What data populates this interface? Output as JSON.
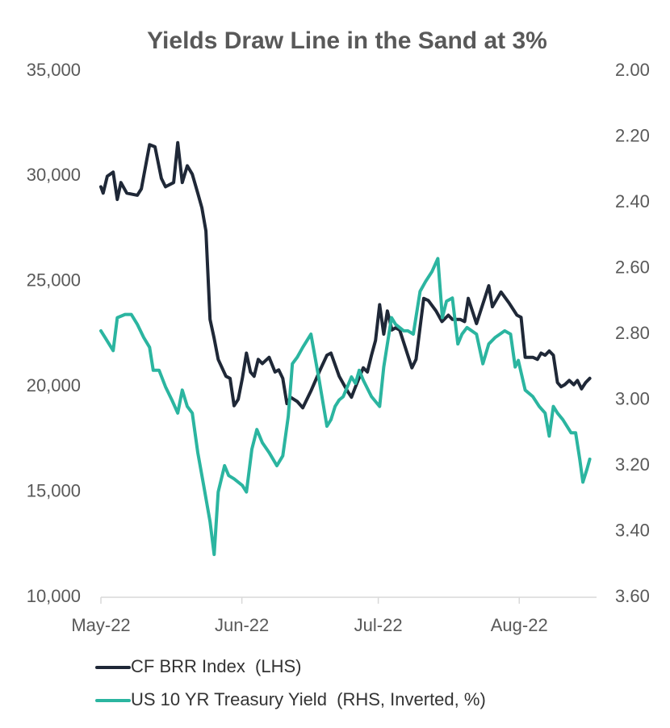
{
  "chart_data": {
    "type": "line",
    "title": "Yields Draw Line in the Sand at 3%",
    "xlim": [
      0,
      109
    ],
    "xticks": [
      {
        "value": 0,
        "label": "May-22"
      },
      {
        "value": 31,
        "label": "Jun-22"
      },
      {
        "value": 61,
        "label": "Jul-22"
      },
      {
        "value": 92,
        "label": "Aug-22"
      }
    ],
    "ylim": [
      10000,
      35000
    ],
    "yticks": [
      {
        "value": 10000,
        "label": "10,000"
      },
      {
        "value": 15000,
        "label": "15,000"
      },
      {
        "value": 20000,
        "label": "20,000"
      },
      {
        "value": 25000,
        "label": "25,000"
      },
      {
        "value": 30000,
        "label": "30,000"
      },
      {
        "value": 35000,
        "label": "35,000"
      }
    ],
    "y2lim": [
      2.0,
      3.6
    ],
    "y2_inverted": true,
    "y2ticks": [
      {
        "value": 2.0,
        "label": "2.00"
      },
      {
        "value": 2.2,
        "label": "2.20"
      },
      {
        "value": 2.4,
        "label": "2.40"
      },
      {
        "value": 2.6,
        "label": "2.60"
      },
      {
        "value": 2.8,
        "label": "2.80"
      },
      {
        "value": 3.0,
        "label": "3.00"
      },
      {
        "value": 3.2,
        "label": "3.20"
      },
      {
        "value": 3.4,
        "label": "3.40"
      },
      {
        "value": 3.6,
        "label": "3.60"
      }
    ],
    "legend": "bottom",
    "series": [
      {
        "name": "CF BRR Index  (LHS)",
        "color": "#1f2837",
        "axis": "y",
        "x": [
          0,
          0.5,
          1.4,
          2.7,
          3.6,
          4.4,
          5.7,
          8.0,
          8.9,
          10.7,
          11.9,
          13.3,
          14.2,
          16.0,
          16.9,
          17.9,
          19.0,
          20.1,
          21.3,
          22.2,
          23.1,
          24.0,
          24.9,
          25.8,
          27.5,
          28.4,
          29.3,
          30.2,
          31.1,
          32.0,
          32.9,
          33.7,
          34.6,
          35.5,
          37.0,
          38.3,
          39.1,
          40.0,
          40.9,
          41.7,
          43.2,
          44.4,
          46.2,
          48.0,
          49.7,
          50.6,
          52.4,
          54.2,
          55.1,
          56.0,
          57.7,
          58.6,
          59.5,
          60.4,
          61.3,
          62.2,
          63.0,
          64.0,
          64.8,
          65.7,
          67.5,
          68.4,
          69.3,
          71.0,
          72.0,
          73.7,
          75.0,
          76.4,
          77.3,
          79.0,
          80.0,
          80.8,
          82.6,
          84.4,
          85.3,
          86.1,
          88.0,
          89.7,
          91.5,
          92.4,
          93.3,
          95.0,
          96.0,
          96.8,
          97.7,
          98.6,
          99.5,
          100.4,
          101.2,
          102.0,
          103.0,
          104.0,
          104.8,
          105.7,
          106.6,
          107.5
        ],
        "values": [
          29500,
          29200,
          30000,
          30200,
          28900,
          29700,
          29200,
          29100,
          29400,
          31500,
          31400,
          29900,
          29500,
          29700,
          31600,
          29700,
          30500,
          30100,
          29200,
          28500,
          27400,
          23200,
          22300,
          21300,
          20500,
          20400,
          19100,
          19400,
          20400,
          21600,
          20700,
          20500,
          21300,
          21100,
          21400,
          20700,
          20800,
          20400,
          19200,
          19500,
          19300,
          19000,
          19800,
          20700,
          21500,
          21600,
          20500,
          19800,
          19500,
          20000,
          20900,
          20700,
          21500,
          22200,
          23900,
          22500,
          23600,
          22700,
          22800,
          22700,
          21500,
          20900,
          21300,
          24200,
          24100,
          23600,
          23100,
          23400,
          23200,
          23200,
          23100,
          24200,
          23000,
          24200,
          24800,
          23800,
          24500,
          24000,
          23400,
          23300,
          21400,
          21400,
          21300,
          21600,
          21500,
          21700,
          21500,
          20200,
          20000,
          20100,
          20300,
          20100,
          20300,
          19900,
          20200,
          20400
        ]
      },
      {
        "name": "US 10 YR Treasury Yield  (RHS, Inverted, %)",
        "color": "#2bb5a0",
        "axis": "y2",
        "x": [
          0,
          0.9,
          2.7,
          3.6,
          5.3,
          6.7,
          8.0,
          9.4,
          10.7,
          11.5,
          12.8,
          14.2,
          15.6,
          16.9,
          17.9,
          19.0,
          20.1,
          21.3,
          22.6,
          24.0,
          24.9,
          25.8,
          27.2,
          28.1,
          29.3,
          31.1,
          32.0,
          33.2,
          34.3,
          35.5,
          37.0,
          38.7,
          40.0,
          41.2,
          42.1,
          43.2,
          44.4,
          46.2,
          48.0,
          49.7,
          50.6,
          51.5,
          52.4,
          53.3,
          54.2,
          55.1,
          56.0,
          56.8,
          57.7,
          59.5,
          61.3,
          62.2,
          63.9,
          64.8,
          66.6,
          67.5,
          68.7,
          70.2,
          71.4,
          72.8,
          74.1,
          75.1,
          76.0,
          77.3,
          78.5,
          79.4,
          80.5,
          82.6,
          84.0,
          85.3,
          86.7,
          88.8,
          90.1,
          91.1,
          91.8,
          93.3,
          95.0,
          96.4,
          97.7,
          98.6,
          99.5,
          100.4,
          101.6,
          103.4,
          104.4,
          105.3,
          106.0,
          106.9,
          107.5
        ],
        "values": [
          2.79,
          2.81,
          2.85,
          2.75,
          2.74,
          2.74,
          2.77,
          2.81,
          2.84,
          2.91,
          2.91,
          2.96,
          3.0,
          3.04,
          2.97,
          3.02,
          3.04,
          3.16,
          3.26,
          3.37,
          3.47,
          3.28,
          3.2,
          3.23,
          3.24,
          3.26,
          3.28,
          3.15,
          3.09,
          3.13,
          3.16,
          3.2,
          3.17,
          3.05,
          2.89,
          2.87,
          2.84,
          2.8,
          2.94,
          3.08,
          3.06,
          3.02,
          3.0,
          2.99,
          2.96,
          2.93,
          2.95,
          2.91,
          2.94,
          2.99,
          3.02,
          2.9,
          2.75,
          2.77,
          2.79,
          2.79,
          2.8,
          2.67,
          2.64,
          2.61,
          2.57,
          2.75,
          2.7,
          2.69,
          2.83,
          2.8,
          2.78,
          2.8,
          2.89,
          2.83,
          2.81,
          2.79,
          2.8,
          2.9,
          2.88,
          2.97,
          2.99,
          3.02,
          3.04,
          3.11,
          3.02,
          3.04,
          3.06,
          3.1,
          3.1,
          3.18,
          3.25,
          3.21,
          3.18
        ]
      }
    ]
  }
}
